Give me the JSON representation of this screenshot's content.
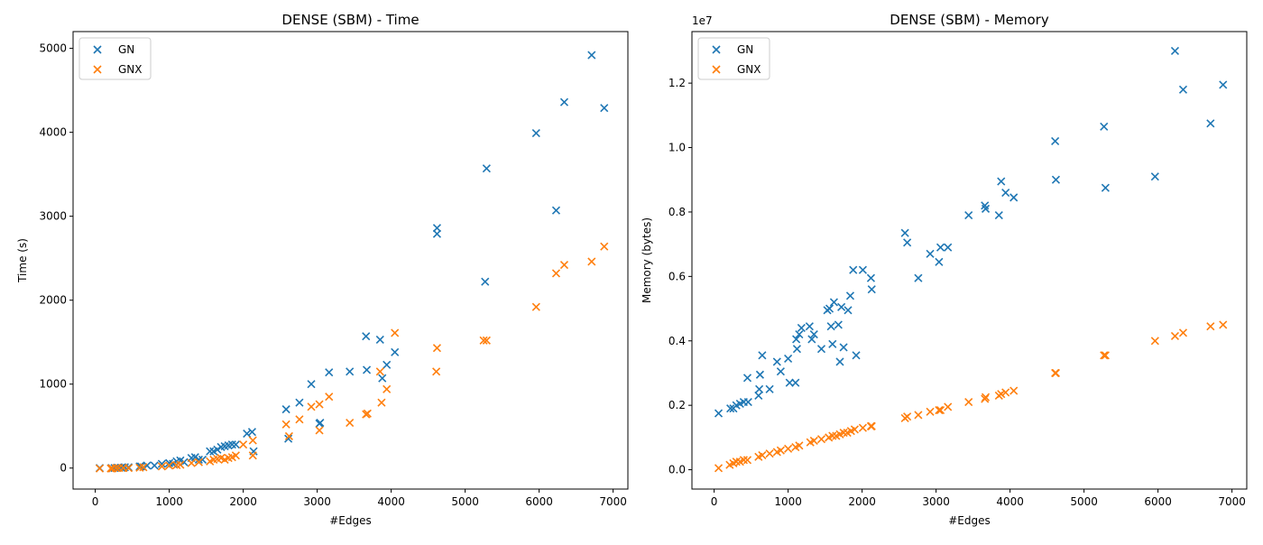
{
  "chart_data": [
    {
      "type": "scatter",
      "title": "DENSE (SBM) - Time",
      "xlabel": "#Edges",
      "ylabel": "Time (s)",
      "xlim": [
        -300,
        7200
      ],
      "ylim": [
        -250,
        5200
      ],
      "xticks": [
        0,
        1000,
        2000,
        3000,
        4000,
        5000,
        6000,
        7000
      ],
      "yticks": [
        0,
        1000,
        2000,
        3000,
        4000,
        5000
      ],
      "ytick_labels": [
        "0",
        "1000",
        "2000",
        "3000",
        "4000",
        "5000"
      ],
      "offset_label": "",
      "legend": "upper left",
      "grid": false,
      "marker": "x",
      "series": [
        {
          "name": "GN",
          "color": "#1f77b4",
          "points": [
            [
              60,
              0
            ],
            [
              220,
              0
            ],
            [
              260,
              0
            ],
            [
              300,
              5
            ],
            [
              350,
              5
            ],
            [
              400,
              10
            ],
            [
              450,
              10
            ],
            [
              600,
              20
            ],
            [
              620,
              20
            ],
            [
              700,
              30
            ],
            [
              800,
              30
            ],
            [
              900,
              50
            ],
            [
              1000,
              60
            ],
            [
              1050,
              50
            ],
            [
              1100,
              80
            ],
            [
              1150,
              90
            ],
            [
              1200,
              70
            ],
            [
              1300,
              120
            ],
            [
              1350,
              130
            ],
            [
              1400,
              100
            ],
            [
              1450,
              100
            ],
            [
              1550,
              200
            ],
            [
              1600,
              200
            ],
            [
              1650,
              220
            ],
            [
              1700,
              250
            ],
            [
              1750,
              260
            ],
            [
              1800,
              270
            ],
            [
              1850,
              280
            ],
            [
              1900,
              280
            ],
            [
              2050,
              410
            ],
            [
              2120,
              430
            ],
            [
              2140,
              200
            ],
            [
              2580,
              700
            ],
            [
              2610,
              350
            ],
            [
              2760,
              780
            ],
            [
              2920,
              1000
            ],
            [
              3030,
              530
            ],
            [
              3040,
              540
            ],
            [
              3160,
              1140
            ],
            [
              3440,
              1150
            ],
            [
              3660,
              1570
            ],
            [
              3670,
              1170
            ],
            [
              3850,
              1530
            ],
            [
              3880,
              1070
            ],
            [
              3940,
              1230
            ],
            [
              4050,
              1380
            ],
            [
              4620,
              2860
            ],
            [
              4620,
              2790
            ],
            [
              5270,
              2220
            ],
            [
              5290,
              3570
            ],
            [
              5960,
              3990
            ],
            [
              6230,
              3070
            ],
            [
              6340,
              4360
            ],
            [
              6710,
              4920
            ],
            [
              6880,
              4290
            ]
          ]
        },
        {
          "name": "GNX",
          "color": "#ff7f0e",
          "points": [
            [
              60,
              -5
            ],
            [
              210,
              -5
            ],
            [
              230,
              -5
            ],
            [
              280,
              0
            ],
            [
              320,
              0
            ],
            [
              380,
              0
            ],
            [
              450,
              0
            ],
            [
              600,
              5
            ],
            [
              650,
              10
            ],
            [
              900,
              20
            ],
            [
              1000,
              30
            ],
            [
              1100,
              35
            ],
            [
              1150,
              40
            ],
            [
              1300,
              60
            ],
            [
              1400,
              70
            ],
            [
              1550,
              80
            ],
            [
              1600,
              100
            ],
            [
              1650,
              110
            ],
            [
              1700,
              120
            ],
            [
              1750,
              100
            ],
            [
              1800,
              120
            ],
            [
              1850,
              130
            ],
            [
              1900,
              150
            ],
            [
              2000,
              280
            ],
            [
              2130,
              150
            ],
            [
              2130,
              330
            ],
            [
              2580,
              520
            ],
            [
              2620,
              380
            ],
            [
              2760,
              580
            ],
            [
              2920,
              730
            ],
            [
              3030,
              450
            ],
            [
              3030,
              760
            ],
            [
              3160,
              850
            ],
            [
              3440,
              540
            ],
            [
              3660,
              640
            ],
            [
              3680,
              650
            ],
            [
              3850,
              1150
            ],
            [
              3870,
              780
            ],
            [
              3940,
              940
            ],
            [
              4050,
              1610
            ],
            [
              4610,
              1150
            ],
            [
              4620,
              1430
            ],
            [
              5250,
              1520
            ],
            [
              5290,
              1520
            ],
            [
              5960,
              1920
            ],
            [
              6230,
              2320
            ],
            [
              6340,
              2420
            ],
            [
              6710,
              2460
            ],
            [
              6880,
              2640
            ]
          ]
        }
      ]
    },
    {
      "type": "scatter",
      "title": "DENSE (SBM) - Memory",
      "xlabel": "#Edges",
      "ylabel": "Memory (bytes)",
      "xlim": [
        -300,
        7200
      ],
      "ylim": [
        -0.06,
        1.36
      ],
      "xticks": [
        0,
        1000,
        2000,
        3000,
        4000,
        5000,
        6000,
        7000
      ],
      "yticks": [
        0,
        0.2,
        0.4,
        0.6,
        0.8,
        1.0,
        1.2
      ],
      "ytick_labels": [
        "0.0",
        "0.2",
        "0.4",
        "0.6",
        "0.8",
        "1.0",
        "1.2"
      ],
      "offset_label": "1e7",
      "legend": "upper left",
      "grid": false,
      "marker": "x",
      "series": [
        {
          "name": "GN",
          "color": "#1f77b4",
          "points": [
            [
              60,
              0.175
            ],
            [
              220,
              0.19
            ],
            [
              260,
              0.19
            ],
            [
              300,
              0.2
            ],
            [
              350,
              0.205
            ],
            [
              400,
              0.21
            ],
            [
              450,
              0.285
            ],
            [
              460,
              0.21
            ],
            [
              600,
              0.23
            ],
            [
              610,
              0.25
            ],
            [
              620,
              0.295
            ],
            [
              650,
              0.355
            ],
            [
              750,
              0.25
            ],
            [
              850,
              0.335
            ],
            [
              900,
              0.305
            ],
            [
              1000,
              0.345
            ],
            [
              1020,
              0.27
            ],
            [
              1100,
              0.27
            ],
            [
              1110,
              0.405
            ],
            [
              1120,
              0.375
            ],
            [
              1150,
              0.42
            ],
            [
              1180,
              0.44
            ],
            [
              1290,
              0.445
            ],
            [
              1320,
              0.405
            ],
            [
              1350,
              0.42
            ],
            [
              1450,
              0.375
            ],
            [
              1530,
              0.495
            ],
            [
              1560,
              0.5
            ],
            [
              1580,
              0.445
            ],
            [
              1600,
              0.39
            ],
            [
              1620,
              0.52
            ],
            [
              1680,
              0.45
            ],
            [
              1700,
              0.335
            ],
            [
              1720,
              0.505
            ],
            [
              1750,
              0.38
            ],
            [
              1810,
              0.495
            ],
            [
              1840,
              0.54
            ],
            [
              1880,
              0.62
            ],
            [
              1920,
              0.355
            ],
            [
              2010,
              0.62
            ],
            [
              2120,
              0.595
            ],
            [
              2130,
              0.56
            ],
            [
              2580,
              0.735
            ],
            [
              2610,
              0.705
            ],
            [
              2760,
              0.595
            ],
            [
              2920,
              0.67
            ],
            [
              3040,
              0.645
            ],
            [
              3060,
              0.69
            ],
            [
              3160,
              0.69
            ],
            [
              3440,
              0.79
            ],
            [
              3660,
              0.82
            ],
            [
              3670,
              0.81
            ],
            [
              3850,
              0.79
            ],
            [
              3880,
              0.895
            ],
            [
              3940,
              0.86
            ],
            [
              4050,
              0.845
            ],
            [
              4610,
              1.02
            ],
            [
              4620,
              0.9
            ],
            [
              5270,
              1.065
            ],
            [
              5290,
              0.875
            ],
            [
              5960,
              0.91
            ],
            [
              6230,
              1.3
            ],
            [
              6340,
              1.18
            ],
            [
              6710,
              1.075
            ],
            [
              6880,
              1.195
            ]
          ]
        },
        {
          "name": "GNX",
          "color": "#ff7f0e",
          "points": [
            [
              60,
              0.005
            ],
            [
              210,
              0.015
            ],
            [
              260,
              0.02
            ],
            [
              300,
              0.025
            ],
            [
              350,
              0.025
            ],
            [
              400,
              0.03
            ],
            [
              450,
              0.03
            ],
            [
              600,
              0.04
            ],
            [
              650,
              0.045
            ],
            [
              750,
              0.05
            ],
            [
              850,
              0.055
            ],
            [
              900,
              0.06
            ],
            [
              1000,
              0.065
            ],
            [
              1100,
              0.07
            ],
            [
              1150,
              0.075
            ],
            [
              1300,
              0.085
            ],
            [
              1350,
              0.09
            ],
            [
              1450,
              0.095
            ],
            [
              1550,
              0.1
            ],
            [
              1600,
              0.105
            ],
            [
              1650,
              0.105
            ],
            [
              1700,
              0.11
            ],
            [
              1750,
              0.115
            ],
            [
              1800,
              0.115
            ],
            [
              1850,
              0.12
            ],
            [
              1900,
              0.125
            ],
            [
              2010,
              0.13
            ],
            [
              2120,
              0.135
            ],
            [
              2130,
              0.135
            ],
            [
              2580,
              0.16
            ],
            [
              2610,
              0.165
            ],
            [
              2760,
              0.17
            ],
            [
              2920,
              0.18
            ],
            [
              3040,
              0.185
            ],
            [
              3060,
              0.185
            ],
            [
              3160,
              0.195
            ],
            [
              3440,
              0.21
            ],
            [
              3660,
              0.22
            ],
            [
              3670,
              0.225
            ],
            [
              3850,
              0.23
            ],
            [
              3880,
              0.235
            ],
            [
              3940,
              0.24
            ],
            [
              4050,
              0.245
            ],
            [
              4610,
              0.3
            ],
            [
              4620,
              0.3
            ],
            [
              5270,
              0.355
            ],
            [
              5290,
              0.355
            ],
            [
              5960,
              0.4
            ],
            [
              6230,
              0.415
            ],
            [
              6340,
              0.425
            ],
            [
              6710,
              0.445
            ],
            [
              6880,
              0.45
            ]
          ]
        }
      ]
    }
  ]
}
